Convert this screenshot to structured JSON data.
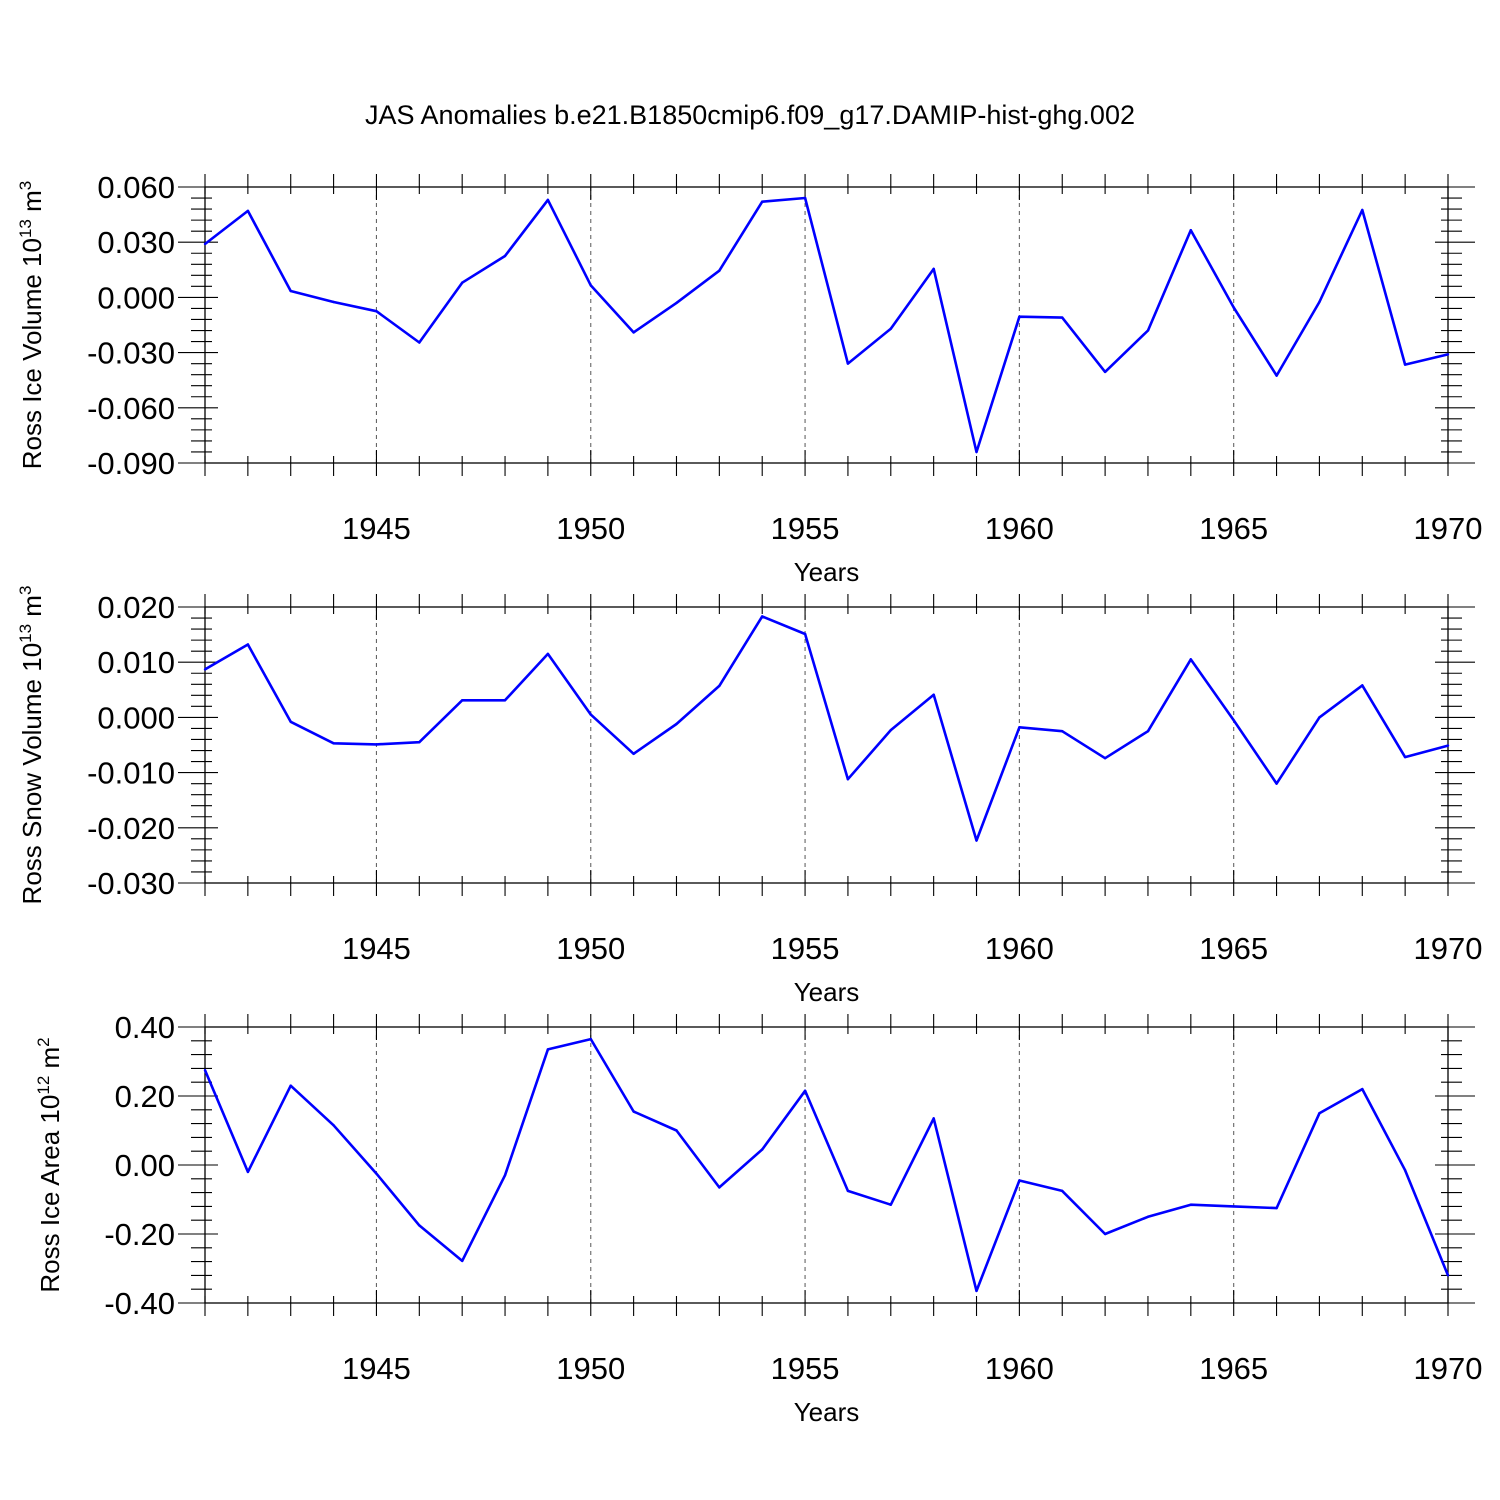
{
  "title": "JAS Anomalies b.e21.B1850cmip6.f09_g17.DAMIP-hist-ghg.002",
  "colors": {
    "line": "#0000ff",
    "axis": "#000000",
    "grid": "#666666"
  },
  "chart_data": [
    {
      "type": "line",
      "title": "JAS Anomalies b.e21.B1850cmip6.f09_g17.DAMIP-hist-ghg.002",
      "xlabel": "Years",
      "ylabel": {
        "text": "Ross Ice Volume 10",
        "exp": "13",
        "unit": "m",
        "unit_exp": "3"
      },
      "xlim": [
        1941,
        1970
      ],
      "ylim": [
        -0.09,
        0.06
      ],
      "x_ticks": [
        1945,
        1950,
        1955,
        1960,
        1965,
        1970
      ],
      "x_tick_labels": [
        "1945",
        "1950",
        "1955",
        "1960",
        "1965",
        "1970"
      ],
      "y_ticks": [
        0.06,
        0.03,
        0.0,
        -0.03,
        -0.06,
        -0.09
      ],
      "y_tick_labels": [
        "0.060",
        "0.030",
        "0.000",
        "-0.030",
        "-0.060",
        "-0.090"
      ],
      "grid": "vertical dashed at major x ticks",
      "x": [
        1941,
        1942,
        1943,
        1944,
        1945,
        1946,
        1947,
        1948,
        1949,
        1950,
        1951,
        1952,
        1953,
        1954,
        1955,
        1956,
        1957,
        1958,
        1959,
        1960,
        1961,
        1962,
        1963,
        1964,
        1965,
        1966,
        1967,
        1968,
        1969,
        1970
      ],
      "series": [
        {
          "values": [
            0.029,
            0.047,
            0.0035,
            -0.0025,
            -0.0075,
            -0.0245,
            0.008,
            0.0225,
            0.053,
            0.0065,
            -0.019,
            -0.003,
            0.0145,
            0.052,
            0.054,
            -0.036,
            -0.017,
            0.0155,
            -0.084,
            -0.0105,
            -0.011,
            -0.0405,
            -0.018,
            0.0365,
            -0.0055,
            -0.0425,
            -0.0025,
            0.0475,
            -0.0365,
            -0.031
          ]
        }
      ]
    },
    {
      "type": "line",
      "xlabel": "Years",
      "ylabel": {
        "text": "Ross Snow Volume 10",
        "exp": "13",
        "unit": "m",
        "unit_exp": "3"
      },
      "xlim": [
        1941,
        1970
      ],
      "ylim": [
        -0.03,
        0.02
      ],
      "x_ticks": [
        1945,
        1950,
        1955,
        1960,
        1965,
        1970
      ],
      "x_tick_labels": [
        "1945",
        "1950",
        "1955",
        "1960",
        "1965",
        "1970"
      ],
      "y_ticks": [
        0.02,
        0.01,
        0.0,
        -0.01,
        -0.02,
        -0.03
      ],
      "y_tick_labels": [
        "0.020",
        "0.010",
        "0.000",
        "-0.010",
        "-0.020",
        "-0.030"
      ],
      "grid": "vertical dashed at major x ticks",
      "x": [
        1941,
        1942,
        1943,
        1944,
        1945,
        1946,
        1947,
        1948,
        1949,
        1950,
        1951,
        1952,
        1953,
        1954,
        1955,
        1956,
        1957,
        1958,
        1959,
        1960,
        1961,
        1962,
        1963,
        1964,
        1965,
        1966,
        1967,
        1968,
        1969,
        1970
      ],
      "series": [
        {
          "values": [
            0.0087,
            0.0132,
            -0.0008,
            -0.0047,
            -0.0049,
            -0.0045,
            0.0031,
            0.0031,
            0.0115,
            0.0005,
            -0.0066,
            -0.0012,
            0.0057,
            0.0183,
            0.0151,
            -0.0112,
            -0.0023,
            0.0041,
            -0.0223,
            -0.0018,
            -0.0025,
            -0.0074,
            -0.0025,
            0.0105,
            -0.0005,
            -0.012,
            0.0,
            0.0058,
            -0.0072,
            -0.0051
          ]
        }
      ]
    },
    {
      "type": "line",
      "xlabel": "Years",
      "ylabel": {
        "text": "Ross Ice Area 10",
        "exp": "12",
        "unit": "m",
        "unit_exp": "2"
      },
      "xlim": [
        1941,
        1970
      ],
      "ylim": [
        -0.4,
        0.4
      ],
      "x_ticks": [
        1945,
        1950,
        1955,
        1960,
        1965,
        1970
      ],
      "x_tick_labels": [
        "1945",
        "1950",
        "1955",
        "1960",
        "1965",
        "1970"
      ],
      "y_ticks": [
        0.4,
        0.2,
        0.0,
        -0.2,
        -0.4
      ],
      "y_tick_labels": [
        "0.40",
        "0.20",
        "0.00",
        "-0.20",
        "-0.40"
      ],
      "grid": "vertical dashed at major x ticks",
      "x": [
        1941,
        1942,
        1943,
        1944,
        1945,
        1946,
        1947,
        1948,
        1949,
        1950,
        1951,
        1952,
        1953,
        1954,
        1955,
        1956,
        1957,
        1958,
        1959,
        1960,
        1961,
        1962,
        1963,
        1964,
        1965,
        1966,
        1967,
        1968,
        1969,
        1970
      ],
      "series": [
        {
          "values": [
            0.275,
            -0.02,
            0.23,
            0.115,
            -0.025,
            -0.175,
            -0.278,
            -0.03,
            0.335,
            0.365,
            0.155,
            0.1,
            -0.065,
            0.045,
            0.215,
            -0.075,
            -0.115,
            0.135,
            -0.365,
            -0.045,
            -0.075,
            -0.2,
            -0.15,
            -0.115,
            -0.12,
            -0.125,
            0.15,
            0.22,
            -0.015,
            -0.32
          ]
        }
      ]
    }
  ]
}
